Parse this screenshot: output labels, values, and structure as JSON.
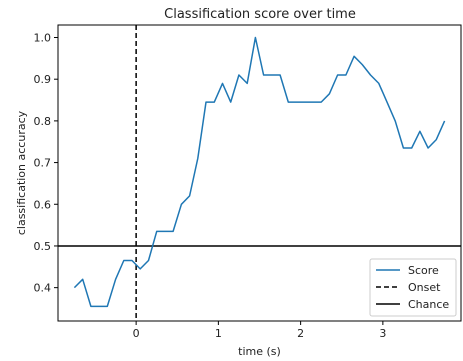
{
  "chart_data": {
    "type": "line",
    "title": "Classification score over time",
    "xlabel": "time (s)",
    "ylabel": "classification accuracy",
    "xlim": [
      -0.95,
      3.95
    ],
    "ylim": [
      0.32,
      1.03
    ],
    "xticks": [
      0,
      1,
      2,
      3
    ],
    "yticks": [
      0.4,
      0.5,
      0.6,
      0.7,
      0.8,
      0.9,
      1.0
    ],
    "xtick_labels": [
      "0",
      "1",
      "2",
      "3"
    ],
    "ytick_labels": [
      "0.4",
      "0.5",
      "0.6",
      "0.7",
      "0.8",
      "0.9",
      "1.0"
    ],
    "grid": false,
    "legend_position": "bottom-right",
    "series": [
      {
        "name": "Score",
        "color": "#1f77b4",
        "x": [
          -0.75,
          -0.65,
          -0.55,
          -0.45,
          -0.35,
          -0.25,
          -0.15,
          -0.05,
          0.05,
          0.15,
          0.25,
          0.35,
          0.45,
          0.55,
          0.65,
          0.75,
          0.85,
          0.95,
          1.05,
          1.15,
          1.25,
          1.35,
          1.45,
          1.55,
          1.65,
          1.75,
          1.85,
          1.95,
          2.05,
          2.15,
          2.25,
          2.35,
          2.45,
          2.55,
          2.65,
          2.75,
          2.85,
          2.95,
          3.05,
          3.15,
          3.25,
          3.35,
          3.45,
          3.55,
          3.65,
          3.75
        ],
        "y": [
          0.4,
          0.42,
          0.355,
          0.355,
          0.355,
          0.42,
          0.465,
          0.465,
          0.445,
          0.465,
          0.535,
          0.535,
          0.535,
          0.6,
          0.62,
          0.71,
          0.845,
          0.845,
          0.89,
          0.845,
          0.91,
          0.89,
          1.0,
          0.91,
          0.91,
          0.91,
          0.845,
          0.845,
          0.845,
          0.845,
          0.845,
          0.865,
          0.91,
          0.91,
          0.955,
          0.935,
          0.91,
          0.89,
          0.845,
          0.8,
          0.735,
          0.735,
          0.775,
          0.735,
          0.755,
          0.8
        ]
      }
    ],
    "lines": [
      {
        "name": "Onset",
        "orientation": "vertical",
        "value": 0,
        "style": "dashed",
        "color": "#000000"
      },
      {
        "name": "Chance",
        "orientation": "horizontal",
        "value": 0.5,
        "style": "solid",
        "color": "#000000"
      }
    ]
  }
}
